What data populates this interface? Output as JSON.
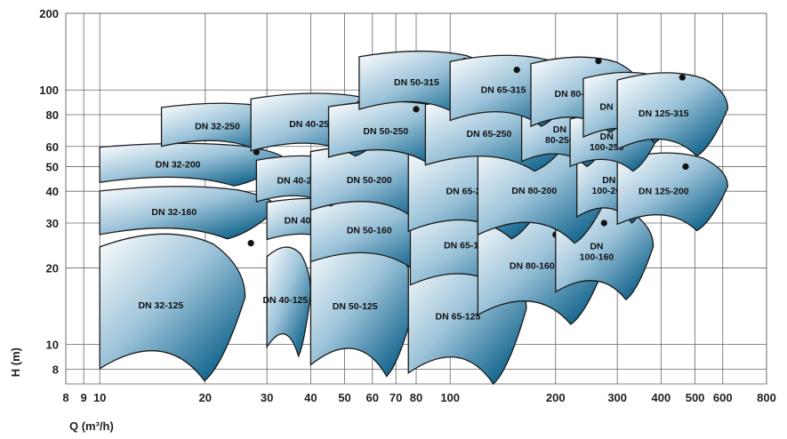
{
  "chart_data": {
    "type": "scatter",
    "title": "",
    "xlabel": "Q (m³/h)",
    "ylabel": "H (m)",
    "xscale": "log",
    "yscale": "log",
    "xlim": [
      8,
      800
    ],
    "ylim": [
      7,
      200
    ],
    "grid": true,
    "xticks": [
      8,
      9,
      10,
      20,
      30,
      40,
      50,
      60,
      70,
      80,
      100,
      200,
      300,
      400,
      500,
      600,
      800
    ],
    "xtick_labels": [
      "8",
      "9",
      "10",
      "20",
      "30",
      "40",
      "50",
      "60",
      "70",
      "80",
      "100",
      "200",
      "300",
      "400",
      "500",
      "600",
      "800"
    ],
    "yticks": [
      8,
      10,
      20,
      30,
      40,
      50,
      60,
      80,
      100,
      200
    ],
    "ytick_labels": [
      "8",
      "10",
      "20",
      "30",
      "40",
      "50",
      "60",
      "80",
      "100",
      "200"
    ],
    "series": [
      {
        "name": "DN 32-125",
        "label_lines": [
          "DN 32-125"
        ],
        "q_range": [
          10,
          26
        ],
        "h_range": [
          7.2,
          28.5
        ],
        "bep": [
          27,
          25
        ]
      },
      {
        "name": "DN 40-125",
        "label_lines": [
          "DN 40-125"
        ],
        "q_range": [
          30,
          40
        ],
        "h_range": [
          9,
          25
        ],
        "bep": [
          44,
          23
        ]
      },
      {
        "name": "DN 50-125",
        "label_lines": [
          "DN 50-125"
        ],
        "q_range": [
          40,
          80
        ],
        "h_range": [
          7.5,
          27
        ],
        "bep": [
          70,
          23.5
        ]
      },
      {
        "name": "DN 65-125",
        "label_lines": [
          "DN 65-125"
        ],
        "q_range": [
          76,
          165
        ],
        "h_range": [
          7,
          24
        ],
        "bep": [
          115,
          20
        ]
      },
      {
        "name": "DN 32-160",
        "label_lines": [
          "DN 32-160"
        ],
        "q_range": [
          10,
          32
        ],
        "h_range": [
          26,
          42.5
        ],
        "bep": [
          29,
          38
        ]
      },
      {
        "name": "DN 40-160",
        "label_lines": [
          "DN 40-160"
        ],
        "q_range": [
          30,
          56
        ],
        "h_range": [
          25,
          38
        ],
        "bep": [
          52,
          35
        ]
      },
      {
        "name": "DN 50-160",
        "label_lines": [
          "DN 50-160"
        ],
        "q_range": [
          40,
          100
        ],
        "h_range": [
          20,
          40
        ],
        "bep": [
          80,
          35
        ]
      },
      {
        "name": "DN 65-160",
        "label_lines": [
          "DN 65-160"
        ],
        "q_range": [
          77,
          185
        ],
        "h_range": [
          16,
          38
        ],
        "bep": [
          120,
          36
        ]
      },
      {
        "name": "DN 80-160",
        "label_lines": [
          "DN 80-160"
        ],
        "q_range": [
          120,
          280
        ],
        "h_range": [
          12,
          35
        ],
        "bep": [
          200,
          27
        ]
      },
      {
        "name": "DN 100-160",
        "label_lines": [
          "DN",
          "100-160"
        ],
        "q_range": [
          200,
          380
        ],
        "h_range": [
          15,
          36
        ],
        "bep": [
          275,
          30
        ]
      },
      {
        "name": "DN 32-200",
        "label_lines": [
          "DN 32-200"
        ],
        "q_range": [
          10,
          34
        ],
        "h_range": [
          42,
          62.5
        ],
        "bep": [
          28,
          57
        ]
      },
      {
        "name": "DN 40-200",
        "label_lines": [
          "DN 40-200"
        ],
        "q_range": [
          28,
          55
        ],
        "h_range": [
          35,
          56
        ],
        "bep": [
          46,
          52
        ]
      },
      {
        "name": "DN 50-200",
        "label_lines": [
          "DN 50-200"
        ],
        "q_range": [
          40,
          100
        ],
        "h_range": [
          32,
          62
        ],
        "bep": [
          80,
          55
        ]
      },
      {
        "name": "DN 65-200",
        "label_lines": [
          "DN 65-200"
        ],
        "q_range": [
          76,
          195
        ],
        "h_range": [
          26,
          62
        ],
        "bep": [
          125,
          60
        ]
      },
      {
        "name": "DN 80-200",
        "label_lines": [
          "DN 80-200"
        ],
        "q_range": [
          120,
          290
        ],
        "h_range": [
          25,
          65
        ],
        "bep": [
          205,
          58
        ]
      },
      {
        "name": "DN 100-200",
        "label_lines": [
          "DN",
          "100-200"
        ],
        "q_range": [
          230,
          380
        ],
        "h_range": [
          30,
          60
        ],
        "bep": [
          275,
          55
        ]
      },
      {
        "name": "DN 125-200",
        "label_lines": [
          "DN 125-200"
        ],
        "q_range": [
          300,
          620
        ],
        "h_range": [
          28,
          58
        ],
        "bep": [
          470,
          50
        ]
      },
      {
        "name": "DN 32-250",
        "label_lines": [
          "DN 32-250"
        ],
        "q_range": [
          15,
          36
        ],
        "h_range": [
          58,
          90
        ],
        "bep": [
          31,
          80
        ]
      },
      {
        "name": "DN 40-250",
        "label_lines": [
          "DN 40-250"
        ],
        "q_range": [
          27,
          70
        ],
        "h_range": [
          55,
          99
        ],
        "bep": [
          55,
          88
        ]
      },
      {
        "name": "DN 50-250",
        "label_lines": [
          "DN 50-250"
        ],
        "q_range": [
          45,
          110
        ],
        "h_range": [
          52,
          92
        ],
        "bep": [
          80,
          84
        ]
      },
      {
        "name": "DN 65-250",
        "label_lines": [
          "DN 65-250"
        ],
        "q_range": [
          85,
          230
        ],
        "h_range": [
          48,
          95
        ],
        "bep": [
          150,
          86
        ]
      },
      {
        "name": "DN 80-250",
        "label_lines": [
          "DN",
          "80-250"
        ],
        "q_range": [
          160,
          290
        ],
        "h_range": [
          50,
          90
        ],
        "bep": [
          225,
          84
        ]
      },
      {
        "name": "DN 100-250",
        "label_lines": [
          "DN",
          "100-250"
        ],
        "q_range": [
          220,
          390
        ],
        "h_range": [
          48,
          82
        ],
        "bep": [
          300,
          72
        ]
      },
      {
        "name": "DN 50-315",
        "label_lines": [
          "DN 50-315"
        ],
        "q_range": [
          55,
          135
        ],
        "h_range": [
          80,
          145
        ],
        "bep": [
          110,
          130
        ]
      },
      {
        "name": "DN 65-315",
        "label_lines": [
          "DN 65-315"
        ],
        "q_range": [
          100,
          230
        ],
        "h_range": [
          72,
          140
        ],
        "bep": [
          155,
          120
        ]
      },
      {
        "name": "DN 80-316",
        "label_lines": [
          "DN 80-316"
        ],
        "q_range": [
          170,
          350
        ],
        "h_range": [
          68,
          138
        ],
        "bep": [
          265,
          130
        ]
      },
      {
        "name": "DN 100-316",
        "label_lines": [
          "DN 100-316"
        ],
        "q_range": [
          240,
          460
        ],
        "h_range": [
          62,
          120
        ],
        "bep": [
          360,
          112
        ]
      },
      {
        "name": "DN 125-315",
        "label_lines": [
          "DN 125-315"
        ],
        "q_range": [
          300,
          620
        ],
        "h_range": [
          55,
          120
        ],
        "bep": [
          460,
          112
        ]
      }
    ]
  }
}
